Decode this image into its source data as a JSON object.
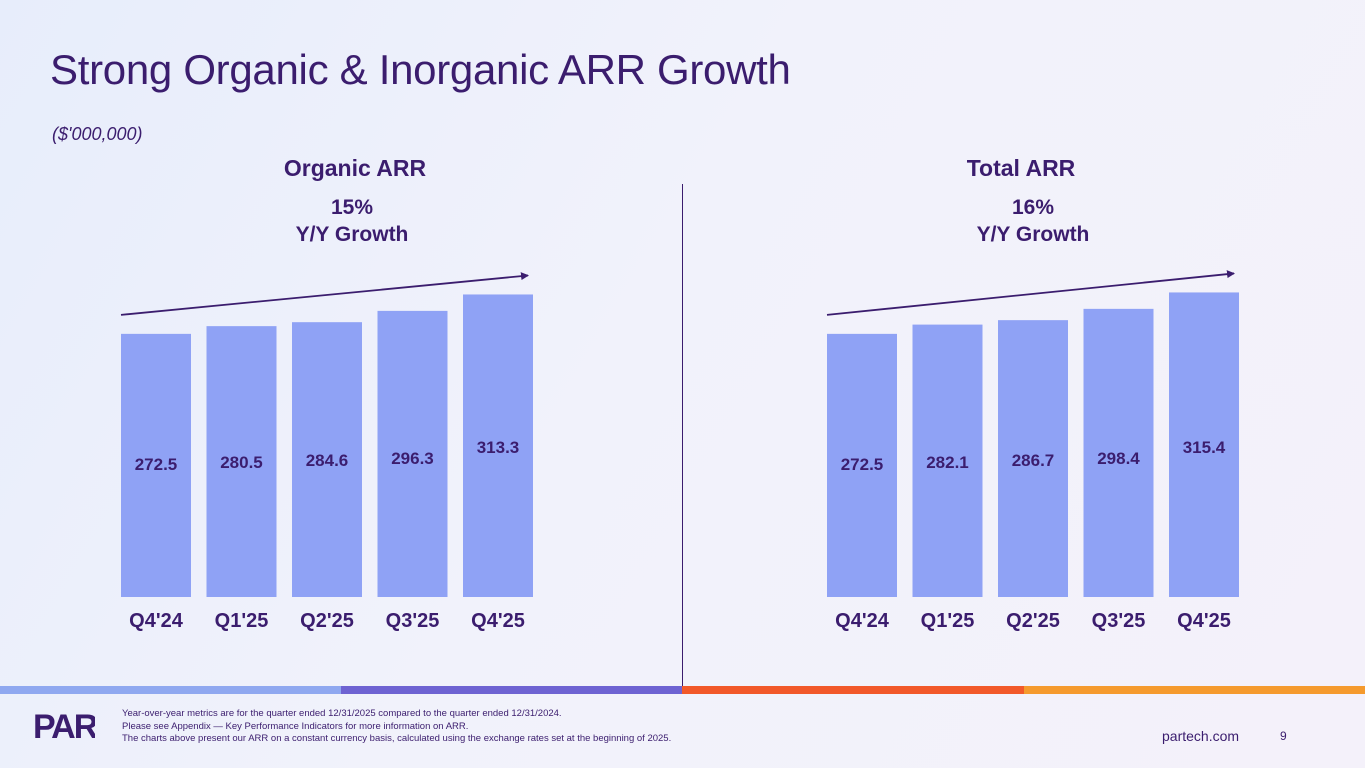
{
  "slide": {
    "title": "Strong Organic & Inorganic ARR Growth",
    "units": "($'000,000)",
    "page_number": "9",
    "website": "partech.com",
    "logo_text": "PAR"
  },
  "colors": {
    "bar": "#8fa2f5",
    "text": "#3b1d6e",
    "stripe": [
      "#8fa8f0",
      "#6e63d2",
      "#f2592a",
      "#f59a2d"
    ]
  },
  "footnotes": [
    "Year-over-year metrics are for the quarter ended 12/31/2025 compared to the quarter ended 12/31/2024.",
    "Please see Appendix — Key Performance Indicators for more information on ARR.",
    "The charts above present our ARR on a constant currency basis, calculated using the exchange rates set at the beginning of 2025."
  ],
  "chart_data": [
    {
      "type": "bar",
      "title": "Organic ARR",
      "growth_pct": "15%",
      "growth_label": "Y/Y Growth",
      "categories": [
        "Q4'24",
        "Q1'25",
        "Q2'25",
        "Q3'25",
        "Q4'25"
      ],
      "values": [
        272.5,
        280.5,
        284.6,
        296.3,
        313.3
      ],
      "value_labels": [
        "272.5",
        "280.5",
        "284.6",
        "296.3",
        "313.3"
      ],
      "ylim": [
        0,
        320
      ],
      "xlabel": "",
      "ylabel": "",
      "grid": false,
      "trend_arrow": true
    },
    {
      "type": "bar",
      "title": "Total ARR",
      "growth_pct": "16%",
      "growth_label": "Y/Y Growth",
      "categories": [
        "Q4'24",
        "Q1'25",
        "Q2'25",
        "Q3'25",
        "Q4'25"
      ],
      "values": [
        272.5,
        282.1,
        286.7,
        298.4,
        315.4
      ],
      "value_labels": [
        "272.5",
        "282.1",
        "286.7",
        "298.4",
        "315.4"
      ],
      "ylim": [
        0,
        320
      ],
      "xlabel": "",
      "ylabel": "",
      "grid": false,
      "trend_arrow": true
    }
  ]
}
